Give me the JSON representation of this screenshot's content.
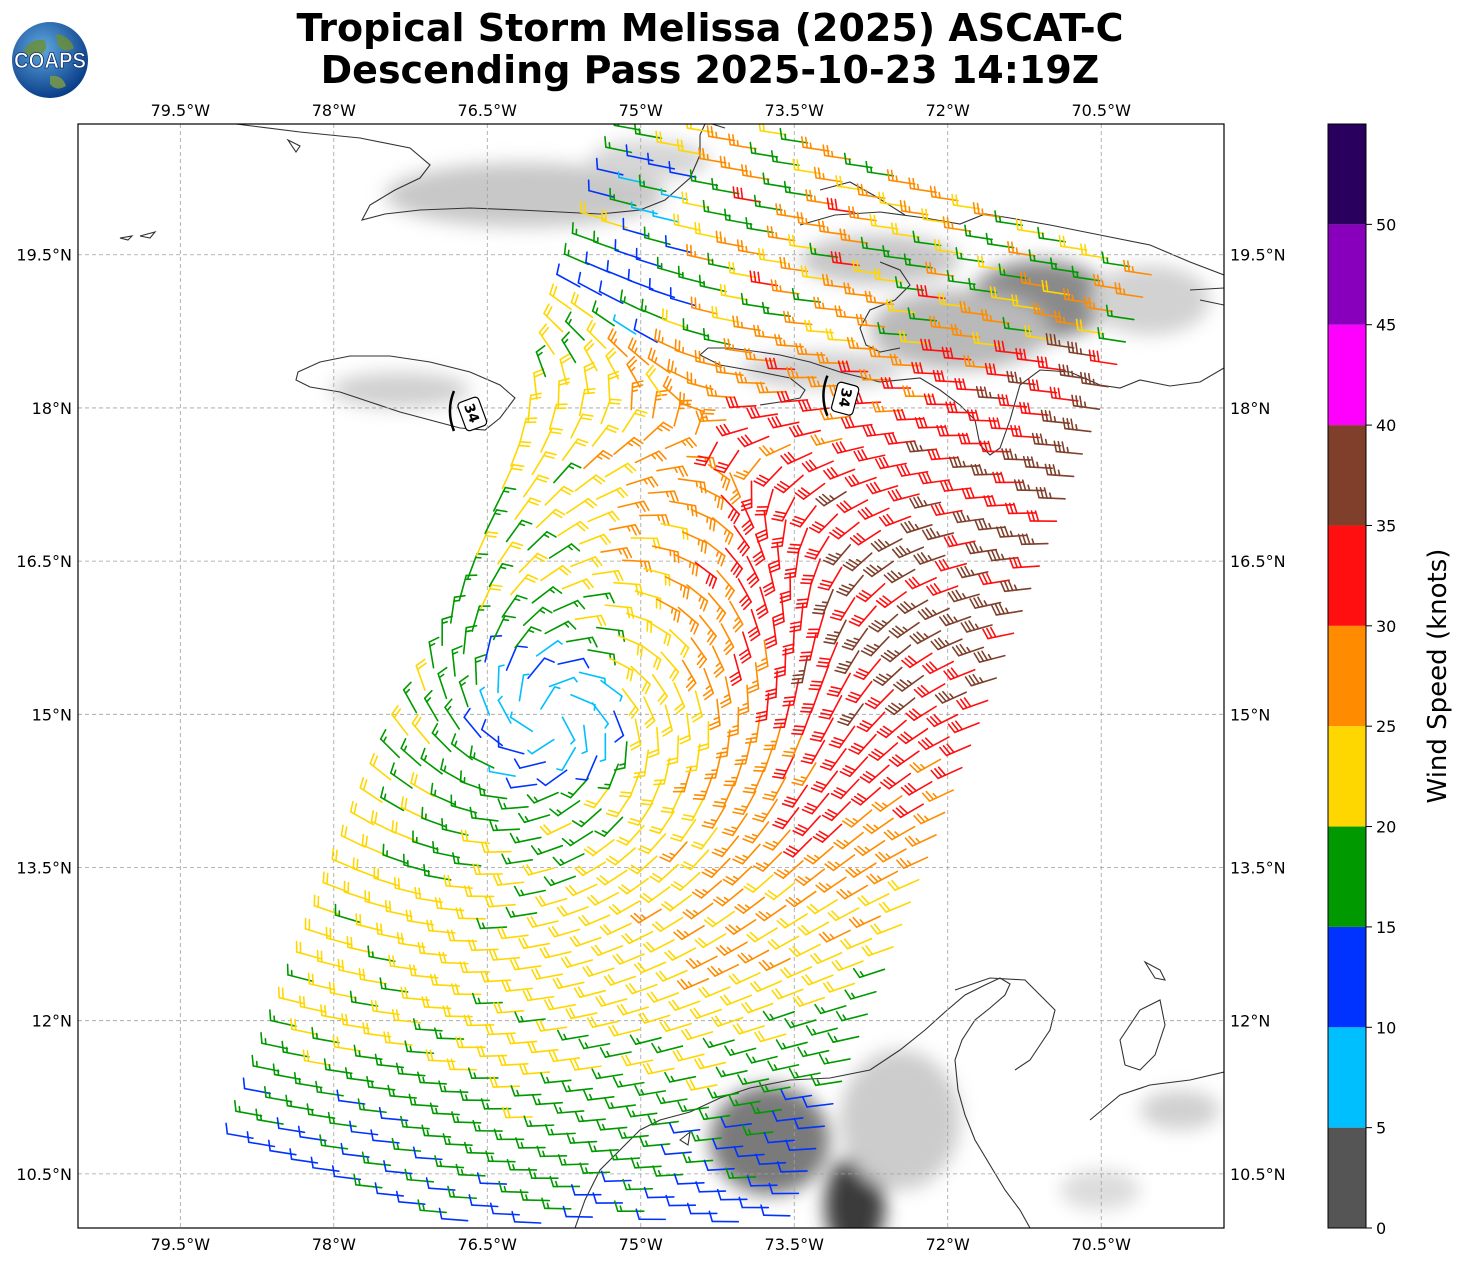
{
  "title": {
    "line1": "Tropical Storm Melissa (2025) ASCAT-C",
    "line2": "Descending Pass 2025-10-23 14:19Z"
  },
  "logo": {
    "text": "COAPS",
    "icon": "globe-logo-icon"
  },
  "map": {
    "lon_range": [
      -80.5,
      -69.3
    ],
    "lat_range": [
      9.97,
      20.78
    ],
    "lon_ticks": [
      {
        "value": -79.5,
        "label": "79.5°W"
      },
      {
        "value": -78.0,
        "label": "78°W"
      },
      {
        "value": -76.5,
        "label": "76.5°W"
      },
      {
        "value": -75.0,
        "label": "75°W"
      },
      {
        "value": -73.5,
        "label": "73.5°W"
      },
      {
        "value": -72.0,
        "label": "72°W"
      },
      {
        "value": -70.5,
        "label": "70.5°W"
      }
    ],
    "lat_ticks": [
      {
        "value": 19.5,
        "label": "19.5°N"
      },
      {
        "value": 18.0,
        "label": "18°N"
      },
      {
        "value": 16.5,
        "label": "16.5°N"
      },
      {
        "value": 15.0,
        "label": "15°N"
      },
      {
        "value": 13.5,
        "label": "13.5°N"
      },
      {
        "value": 12.0,
        "label": "12°N"
      },
      {
        "value": 10.5,
        "label": "10.5°N"
      }
    ],
    "grid": true,
    "storm_center": {
      "lon": -75.9,
      "lat": 14.95
    },
    "radius_markers": [
      {
        "label": "34",
        "lon": -76.65,
        "lat": 17.95
      },
      {
        "label": "34",
        "lon": -73.0,
        "lat": 18.1
      }
    ]
  },
  "colorbar": {
    "label": "Wind Speed (knots)",
    "tick_labels": [
      "0",
      "5",
      "10",
      "15",
      "20",
      "25",
      "30",
      "35",
      "40",
      "45",
      "50"
    ],
    "bins": [
      {
        "from": 0,
        "to": 5,
        "color": "#555555"
      },
      {
        "from": 5,
        "to": 10,
        "color": "#00bfff"
      },
      {
        "from": 10,
        "to": 15,
        "color": "#0033ff"
      },
      {
        "from": 15,
        "to": 20,
        "color": "#009900"
      },
      {
        "from": 20,
        "to": 25,
        "color": "#ffd700"
      },
      {
        "from": 25,
        "to": 30,
        "color": "#ff8c00"
      },
      {
        "from": 30,
        "to": 35,
        "color": "#ff0f0f"
      },
      {
        "from": 35,
        "to": 40,
        "color": "#7f3f2a"
      },
      {
        "from": 40,
        "to": 45,
        "color": "#ff00ff"
      },
      {
        "from": 45,
        "to": 50,
        "color": "#8800bb"
      },
      {
        "from": 50,
        "to": 55,
        "color": "#2a005f"
      }
    ]
  }
}
